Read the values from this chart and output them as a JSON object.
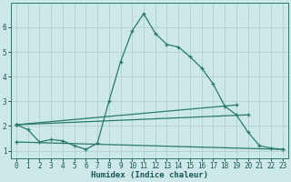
{
  "xlabel": "Humidex (Indice chaleur)",
  "bg_color": "#cce8e8",
  "line_color": "#2a7a6a",
  "grid_color": "#aacccc",
  "xlim": [
    -0.5,
    23.5
  ],
  "ylim": [
    0.7,
    7.0
  ],
  "xticks": [
    0,
    1,
    2,
    3,
    4,
    5,
    6,
    7,
    8,
    9,
    10,
    11,
    12,
    13,
    14,
    15,
    16,
    17,
    18,
    19,
    20,
    21,
    22,
    23
  ],
  "yticks": [
    1,
    2,
    3,
    4,
    5,
    6
  ],
  "curve_main": {
    "x": [
      0,
      1,
      2,
      3,
      4,
      5,
      6,
      7,
      8,
      9,
      10,
      11,
      12,
      13,
      14,
      15,
      16,
      17,
      18,
      19,
      20,
      21,
      22,
      23
    ],
    "y": [
      2.05,
      1.85,
      1.35,
      1.45,
      1.4,
      1.2,
      1.05,
      1.3,
      3.0,
      4.6,
      5.85,
      6.55,
      5.75,
      5.3,
      5.2,
      4.8,
      4.35,
      3.7,
      2.8,
      2.45,
      1.75,
      1.2,
      1.1,
      1.05
    ]
  },
  "line1": {
    "x": [
      0,
      19
    ],
    "y": [
      2.05,
      2.85
    ]
  },
  "line2": {
    "x": [
      0,
      20
    ],
    "y": [
      2.05,
      2.45
    ]
  },
  "line3": {
    "x": [
      0,
      23
    ],
    "y": [
      1.35,
      1.05
    ]
  }
}
